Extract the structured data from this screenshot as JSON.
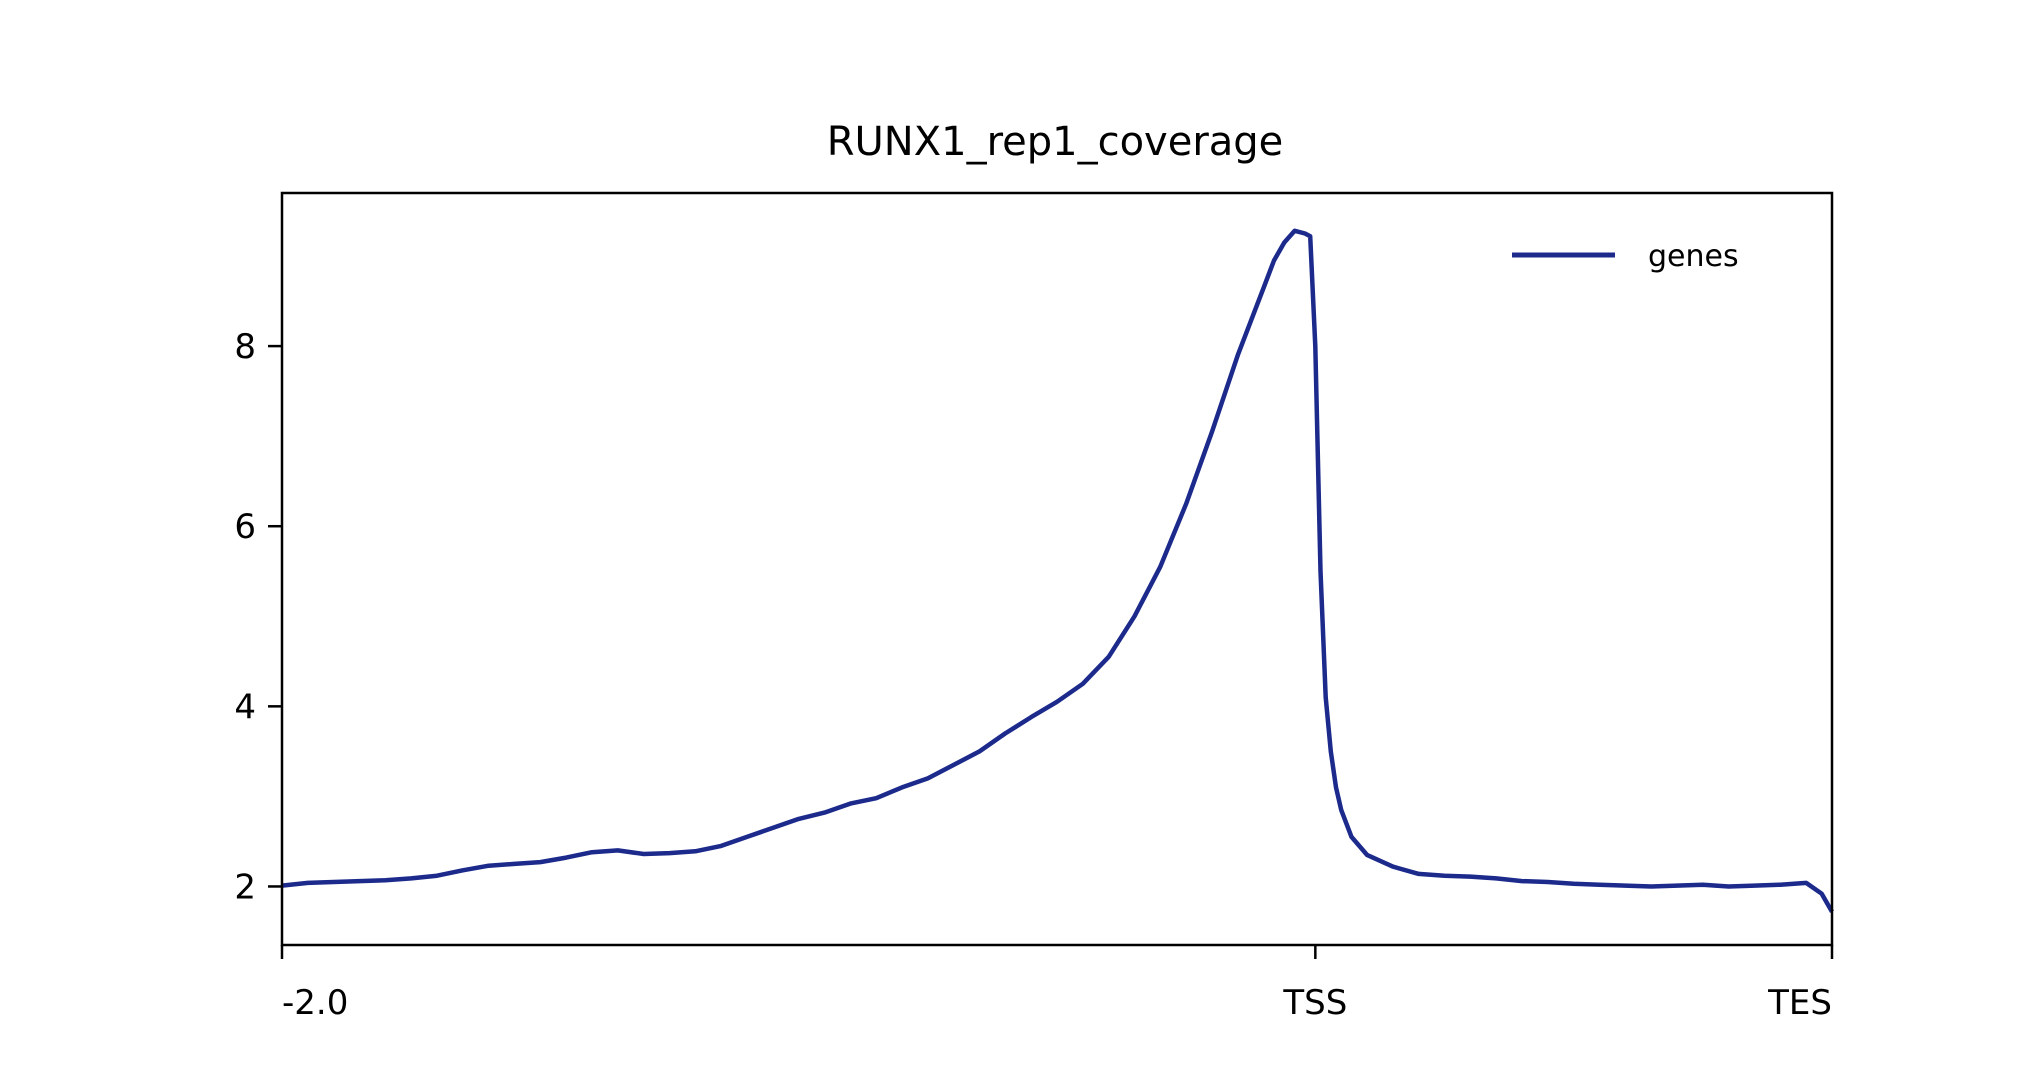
{
  "chart_data": {
    "type": "line",
    "title": "RUNX1_rep1_coverage",
    "xlabel": "",
    "ylabel": "",
    "x_range": [
      0,
      300
    ],
    "ylim": [
      1.35,
      9.7
    ],
    "y_ticks": [
      2,
      4,
      6,
      8
    ],
    "y_tick_labels": [
      "2",
      "4",
      "6",
      "8"
    ],
    "x_ticks": [
      0,
      200,
      300
    ],
    "x_tick_labels": [
      "-2.0",
      "TSS",
      "TES"
    ],
    "grid": false,
    "legend_position": "top-right",
    "series": [
      {
        "name": "genes",
        "color": "#1c2a8c",
        "x": [
          0,
          5,
          10,
          15,
          20,
          25,
          30,
          35,
          40,
          45,
          50,
          55,
          60,
          65,
          70,
          75,
          80,
          85,
          90,
          95,
          100,
          105,
          110,
          115,
          120,
          125,
          130,
          135,
          140,
          145,
          150,
          155,
          160,
          165,
          170,
          175,
          180,
          185,
          190,
          192,
          194,
          196,
          198,
          199,
          200,
          201,
          202,
          203,
          204,
          205,
          207,
          210,
          215,
          220,
          225,
          230,
          235,
          240,
          245,
          250,
          255,
          260,
          265,
          270,
          275,
          280,
          285,
          290,
          295,
          298,
          300
        ],
        "y": [
          2.01,
          2.04,
          2.05,
          2.06,
          2.07,
          2.09,
          2.12,
          2.18,
          2.23,
          2.25,
          2.27,
          2.32,
          2.38,
          2.4,
          2.36,
          2.37,
          2.39,
          2.45,
          2.55,
          2.65,
          2.75,
          2.82,
          2.92,
          2.98,
          3.1,
          3.2,
          3.35,
          3.5,
          3.7,
          3.88,
          4.05,
          4.25,
          4.55,
          5.0,
          5.55,
          6.25,
          7.05,
          7.9,
          8.65,
          8.95,
          9.15,
          9.28,
          9.25,
          9.22,
          8.0,
          5.5,
          4.1,
          3.5,
          3.1,
          2.85,
          2.55,
          2.35,
          2.22,
          2.14,
          2.12,
          2.11,
          2.09,
          2.06,
          2.05,
          2.03,
          2.02,
          2.01,
          2.0,
          2.01,
          2.02,
          2.0,
          2.01,
          2.02,
          2.04,
          1.92,
          1.72
        ]
      }
    ]
  }
}
